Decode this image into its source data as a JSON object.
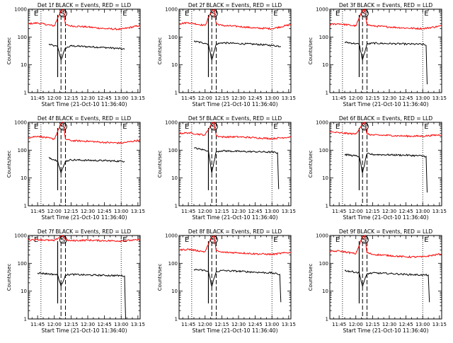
{
  "figure": {
    "panel_title_suffix": "BLACK = Events, RED = LLD",
    "xlabel": "Start Time (21-Oct-10 11:36:40)",
    "ylabel": "Counts/sec",
    "x_tick_labels": [
      "11:45",
      "12:00",
      "12:15",
      "12:30",
      "12:45",
      "13:00",
      "13:15"
    ],
    "y_tick_labels": [
      "1",
      "10",
      "100",
      "1000"
    ],
    "marker_labels": {
      "eclipse_start": "E",
      "saa": "S",
      "eclipse_end": "E"
    },
    "colors": {
      "events": "#000000",
      "lld": "#ff0000",
      "axes": "#000000"
    }
  },
  "chart_data": [
    {
      "type": "line",
      "title": "Det 1f",
      "xlabel": "Start Time (21-Oct-10 11:36:40)",
      "ylabel": "Counts/sec",
      "xlim": [
        "11:36:40",
        "13:17:00"
      ],
      "ylim": [
        1,
        1000
      ],
      "yscale": "log",
      "markers": {
        "dotted": [
          "11:48",
          "13:00"
        ],
        "dashed": [
          "12:06",
          "12:10"
        ],
        "solid": [
          "12:03"
        ]
      },
      "series": [
        {
          "name": "BLACK = Events",
          "color": "#000000",
          "x": [
            "11:55",
            "12:00",
            "12:03",
            "12:06",
            "12:10",
            "12:15",
            "12:30",
            "12:45",
            "13:00",
            "13:03"
          ],
          "y": [
            55,
            48,
            45,
            15,
            40,
            48,
            45,
            42,
            38,
            36
          ]
        },
        {
          "name": "RED = LLD",
          "color": "#ff0000",
          "x": [
            "11:36:40",
            "11:45",
            "12:00",
            "12:06",
            "12:08",
            "12:10",
            "12:15",
            "12:30",
            "12:45",
            "13:00",
            "13:17"
          ],
          "y": [
            300,
            320,
            250,
            900,
            1000,
            280,
            250,
            230,
            200,
            190,
            260
          ]
        }
      ]
    },
    {
      "type": "line",
      "title": "Det 2f",
      "xlabel": "Start Time (21-Oct-10 11:36:40)",
      "ylabel": "Counts/sec",
      "xlim": [
        "11:36:40",
        "13:17:00"
      ],
      "ylim": [
        1,
        1000
      ],
      "yscale": "log",
      "markers": {
        "dotted": [
          "11:48",
          "13:00"
        ],
        "dashed": [
          "12:06",
          "12:10"
        ],
        "solid": [
          "12:03"
        ]
      },
      "series": [
        {
          "name": "BLACK = Events",
          "color": "#000000",
          "x": [
            "11:50",
            "12:00",
            "12:03",
            "12:06",
            "12:10",
            "12:15",
            "12:30",
            "12:45",
            "13:00",
            "13:08"
          ],
          "y": [
            70,
            60,
            55,
            15,
            55,
            62,
            58,
            55,
            50,
            46
          ]
        },
        {
          "name": "RED = LLD",
          "color": "#ff0000",
          "x": [
            "11:36:40",
            "11:45",
            "12:00",
            "12:06",
            "12:08",
            "12:10",
            "12:15",
            "12:30",
            "12:45",
            "13:00",
            "13:17"
          ],
          "y": [
            300,
            330,
            260,
            900,
            1000,
            300,
            260,
            240,
            210,
            200,
            280
          ]
        }
      ]
    },
    {
      "type": "line",
      "title": "Det 3f",
      "xlabel": "Start Time (21-Oct-10 11:36:40)",
      "ylabel": "Counts/sec",
      "xlim": [
        "11:36:40",
        "13:17:00"
      ],
      "ylim": [
        1,
        1000
      ],
      "yscale": "log",
      "markers": {
        "dotted": [
          "11:48",
          "13:00"
        ],
        "dashed": [
          "12:06",
          "12:10"
        ],
        "solid": [
          "12:03"
        ]
      },
      "series": [
        {
          "name": "BLACK = Events",
          "color": "#000000",
          "x": [
            "11:50",
            "12:00",
            "12:03",
            "12:06",
            "12:10",
            "12:15",
            "12:30",
            "12:45",
            "13:00",
            "13:03",
            "13:04"
          ],
          "y": [
            65,
            58,
            55,
            15,
            55,
            60,
            58,
            56,
            55,
            50,
            2
          ]
        },
        {
          "name": "RED = LLD",
          "color": "#ff0000",
          "x": [
            "11:36:40",
            "11:45",
            "12:00",
            "12:06",
            "12:08",
            "12:10",
            "12:15",
            "12:30",
            "12:45",
            "13:00",
            "13:17"
          ],
          "y": [
            280,
            300,
            250,
            900,
            1000,
            280,
            250,
            230,
            210,
            200,
            250
          ]
        }
      ]
    },
    {
      "type": "line",
      "title": "Det 4f",
      "xlabel": "Start Time (21-Oct-10 11:36:40)",
      "ylabel": "Counts/sec",
      "xlim": [
        "11:36:40",
        "13:17:00"
      ],
      "ylim": [
        1,
        1000
      ],
      "yscale": "log",
      "markers": {
        "dotted": [
          "11:48",
          "13:00"
        ],
        "dashed": [
          "12:06",
          "12:10"
        ],
        "solid": [
          "12:03"
        ]
      },
      "series": [
        {
          "name": "BLACK = Events",
          "color": "#000000",
          "x": [
            "11:55",
            "12:00",
            "12:03",
            "12:06",
            "12:10",
            "12:15",
            "12:30",
            "12:45",
            "13:00",
            "13:03"
          ],
          "y": [
            55,
            45,
            42,
            15,
            40,
            45,
            43,
            42,
            40,
            40
          ]
        },
        {
          "name": "RED = LLD",
          "color": "#ff0000",
          "x": [
            "11:36:40",
            "11:45",
            "12:00",
            "12:06",
            "12:08",
            "12:10",
            "12:15",
            "12:30",
            "12:45",
            "13:00",
            "13:17"
          ],
          "y": [
            280,
            320,
            250,
            900,
            1000,
            250,
            220,
            210,
            190,
            180,
            230
          ]
        }
      ]
    },
    {
      "type": "line",
      "title": "Det 5f",
      "xlabel": "Start Time (21-Oct-10 11:36:40)",
      "ylabel": "Counts/sec",
      "xlim": [
        "11:36:40",
        "13:17:00"
      ],
      "ylim": [
        1,
        1000
      ],
      "yscale": "log",
      "markers": {
        "dotted": [
          "11:48",
          "13:00"
        ],
        "dashed": [
          "12:06",
          "12:10"
        ],
        "solid": [
          "12:03"
        ]
      },
      "series": [
        {
          "name": "BLACK = Events",
          "color": "#000000",
          "x": [
            "11:50",
            "12:00",
            "12:03",
            "12:06",
            "12:10",
            "12:15",
            "12:30",
            "12:45",
            "13:00",
            "13:05",
            "13:06"
          ],
          "y": [
            120,
            100,
            95,
            15,
            90,
            95,
            90,
            88,
            85,
            80,
            4
          ]
        },
        {
          "name": "RED = LLD",
          "color": "#ff0000",
          "x": [
            "11:36:40",
            "11:45",
            "12:00",
            "12:06",
            "12:08",
            "12:10",
            "12:15",
            "12:30",
            "12:45",
            "13:00",
            "13:17"
          ],
          "y": [
            400,
            420,
            350,
            900,
            1000,
            330,
            300,
            300,
            280,
            260,
            300
          ]
        }
      ]
    },
    {
      "type": "line",
      "title": "Det 6f",
      "xlabel": "Start Time (21-Oct-10 11:36:40)",
      "ylabel": "Counts/sec",
      "xlim": [
        "11:36:40",
        "13:17:00"
      ],
      "ylim": [
        1,
        1000
      ],
      "yscale": "log",
      "markers": {
        "dotted": [
          "11:48",
          "13:00"
        ],
        "dashed": [
          "12:06",
          "12:10"
        ],
        "solid": [
          "12:03"
        ]
      },
      "series": [
        {
          "name": "BLACK = Events",
          "color": "#000000",
          "x": [
            "11:50",
            "12:00",
            "12:03",
            "12:06",
            "12:10",
            "12:15",
            "12:30",
            "12:45",
            "13:00",
            "13:03",
            "13:04"
          ],
          "y": [
            70,
            62,
            60,
            15,
            75,
            70,
            68,
            66,
            62,
            60,
            3
          ]
        },
        {
          "name": "RED = LLD",
          "color": "#ff0000",
          "x": [
            "11:36:40",
            "11:45",
            "12:00",
            "12:06",
            "12:08",
            "12:10",
            "12:15",
            "12:30",
            "12:45",
            "13:00",
            "13:17"
          ],
          "y": [
            450,
            420,
            380,
            900,
            1000,
            380,
            350,
            340,
            320,
            320,
            360
          ]
        }
      ]
    },
    {
      "type": "line",
      "title": "Det 7f",
      "xlabel": "Start Time (21-Oct-10 11:36:40)",
      "ylabel": "Counts/sec",
      "xlim": [
        "11:36:40",
        "13:17:00"
      ],
      "ylim": [
        1,
        1000
      ],
      "yscale": "log",
      "markers": {
        "dotted": [
          "11:48",
          "13:00"
        ],
        "dashed": [
          "12:06",
          "12:10"
        ],
        "solid": [
          "12:03"
        ]
      },
      "series": [
        {
          "name": "BLACK = Events",
          "color": "#000000",
          "x": [
            "11:45",
            "12:00",
            "12:03",
            "12:06",
            "12:10",
            "12:15",
            "12:30",
            "12:45",
            "13:00",
            "13:03",
            "13:04"
          ],
          "y": [
            45,
            40,
            38,
            15,
            38,
            40,
            38,
            37,
            36,
            35,
            1
          ]
        },
        {
          "name": "RED = LLD",
          "color": "#ff0000",
          "x": [
            "11:36:40",
            "11:45",
            "12:00",
            "12:06",
            "12:08",
            "12:10",
            "12:15",
            "12:30",
            "12:45",
            "13:00",
            "13:17"
          ],
          "y": [
            700,
            720,
            650,
            950,
            1000,
            700,
            650,
            680,
            650,
            640,
            700
          ]
        }
      ]
    },
    {
      "type": "line",
      "title": "Det 8f",
      "xlabel": "Start Time (21-Oct-10 11:36:40)",
      "ylabel": "Counts/sec",
      "xlim": [
        "11:36:40",
        "13:17:00"
      ],
      "ylim": [
        1,
        1000
      ],
      "yscale": "log",
      "markers": {
        "dotted": [
          "11:48",
          "13:00"
        ],
        "dashed": [
          "12:06",
          "12:10"
        ],
        "solid": [
          "12:03"
        ]
      },
      "series": [
        {
          "name": "BLACK = Events",
          "color": "#000000",
          "x": [
            "11:50",
            "12:00",
            "12:03",
            "12:06",
            "12:10",
            "12:15",
            "12:30",
            "12:45",
            "13:00",
            "13:07",
            "13:08"
          ],
          "y": [
            60,
            55,
            50,
            15,
            50,
            55,
            52,
            48,
            45,
            40,
            4
          ]
        },
        {
          "name": "RED = LLD",
          "color": "#ff0000",
          "x": [
            "11:36:40",
            "11:45",
            "12:00",
            "12:06",
            "12:08",
            "12:10",
            "12:15",
            "12:30",
            "12:45",
            "13:00",
            "13:17"
          ],
          "y": [
            300,
            320,
            260,
            900,
            1000,
            280,
            250,
            240,
            220,
            210,
            250
          ]
        }
      ]
    },
    {
      "type": "line",
      "title": "Det 9f",
      "xlabel": "Start Time (21-Oct-10 11:36:40)",
      "ylabel": "Counts/sec",
      "xlim": [
        "11:36:40",
        "13:17:00"
      ],
      "ylim": [
        1,
        1000
      ],
      "yscale": "log",
      "markers": {
        "dotted": [
          "11:48",
          "13:00"
        ],
        "dashed": [
          "12:06",
          "12:10"
        ],
        "solid": [
          "12:03"
        ]
      },
      "series": [
        {
          "name": "BLACK = Events",
          "color": "#000000",
          "x": [
            "11:50",
            "12:00",
            "12:03",
            "12:06",
            "12:10",
            "12:15",
            "12:30",
            "12:45",
            "13:00",
            "13:05",
            "13:06"
          ],
          "y": [
            55,
            48,
            45,
            15,
            42,
            45,
            43,
            40,
            38,
            38,
            4
          ]
        },
        {
          "name": "RED = LLD",
          "color": "#ff0000",
          "x": [
            "11:36:40",
            "11:45",
            "12:00",
            "12:06",
            "12:08",
            "12:10",
            "12:15",
            "12:30",
            "12:45",
            "13:00",
            "13:17"
          ],
          "y": [
            260,
            280,
            220,
            900,
            1000,
            240,
            210,
            190,
            170,
            170,
            220
          ]
        }
      ]
    }
  ]
}
